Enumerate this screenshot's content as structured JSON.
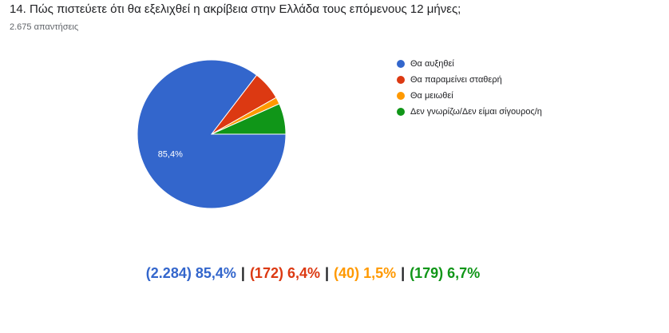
{
  "chart_data": {
    "type": "pie",
    "title": "14. Πώς πιστεύετε ότι θα εξελιχθεί η ακρίβεια στην Ελλάδα τους επόμενους 12 μήνες;",
    "subtitle": "2.675 απαντήσεις",
    "categories": [
      "Θα αυξηθεί",
      "Θα παραμείνει σταθερή",
      "Θα μειωθεί",
      "Δεν γνωρίζω/Δεν είμαι σίγουρος/η"
    ],
    "values": [
      85.4,
      6.4,
      1.5,
      6.7
    ],
    "value_labels": [
      "85,4%",
      null,
      null,
      null
    ],
    "colors": [
      "#3366cc",
      "#dc3912",
      "#ff9900",
      "#109618"
    ],
    "legend": "right",
    "summary": {
      "counts": [
        2284,
        172,
        40,
        179
      ],
      "count_labels": [
        "(2.284)",
        "(172)",
        "(40)",
        "(179)"
      ],
      "percent_labels": [
        "85,4%",
        "6,4%",
        "1,5%",
        "6,7%"
      ],
      "separator": "|"
    }
  }
}
